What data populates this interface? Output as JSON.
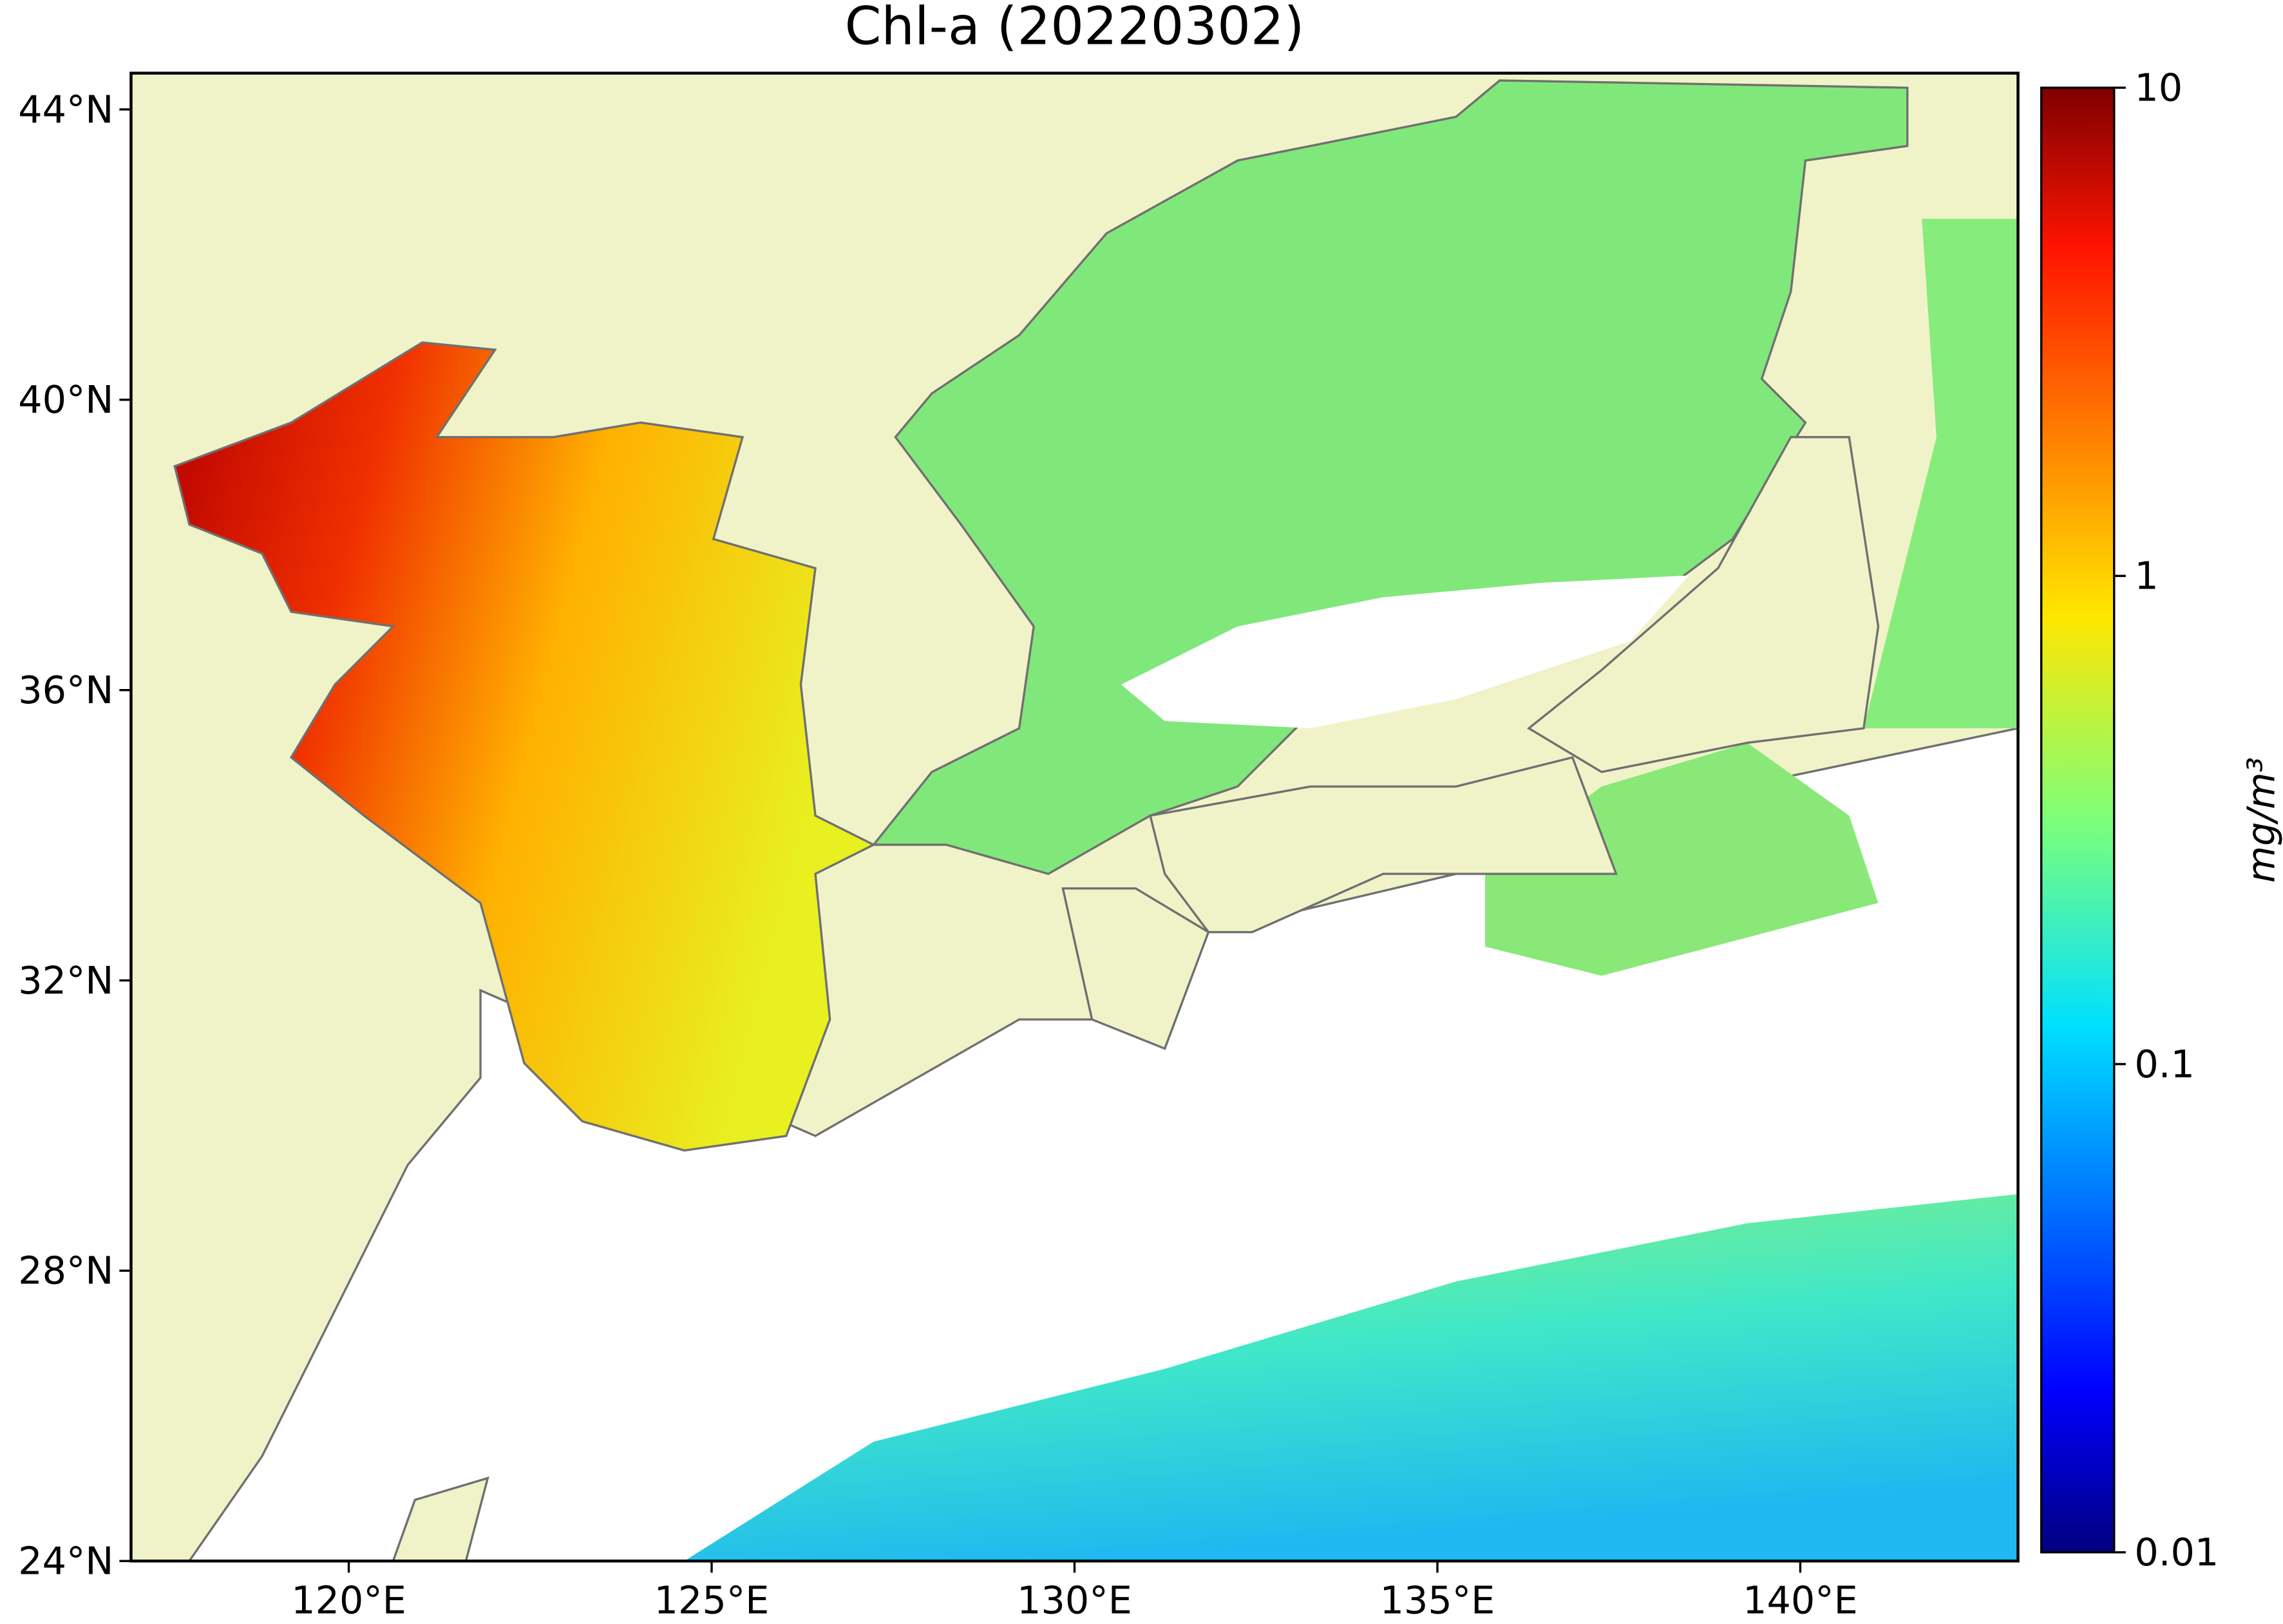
{
  "chart_data": {
    "type": "map",
    "title": "Chl-a (20220302)",
    "xlim": [
      117,
      143
    ],
    "ylim": [
      24,
      44.5
    ],
    "xticks": [
      {
        "value": 120,
        "label": "120°E"
      },
      {
        "value": 125,
        "label": "125°E"
      },
      {
        "value": 130,
        "label": "130°E"
      },
      {
        "value": 135,
        "label": "135°E"
      },
      {
        "value": 140,
        "label": "140°E"
      }
    ],
    "yticks": [
      {
        "value": 24,
        "label": "24°N"
      },
      {
        "value": 28,
        "label": "28°N"
      },
      {
        "value": 32,
        "label": "32°N"
      },
      {
        "value": 36,
        "label": "36°N"
      },
      {
        "value": 40,
        "label": "40°N"
      },
      {
        "value": 44,
        "label": "44°N"
      }
    ],
    "colorbar": {
      "label": "mg/m³",
      "lim": [
        0.01,
        10
      ],
      "ticks": [
        0.01,
        0.1,
        1,
        10
      ],
      "log": true,
      "colormap": "jet"
    }
  }
}
